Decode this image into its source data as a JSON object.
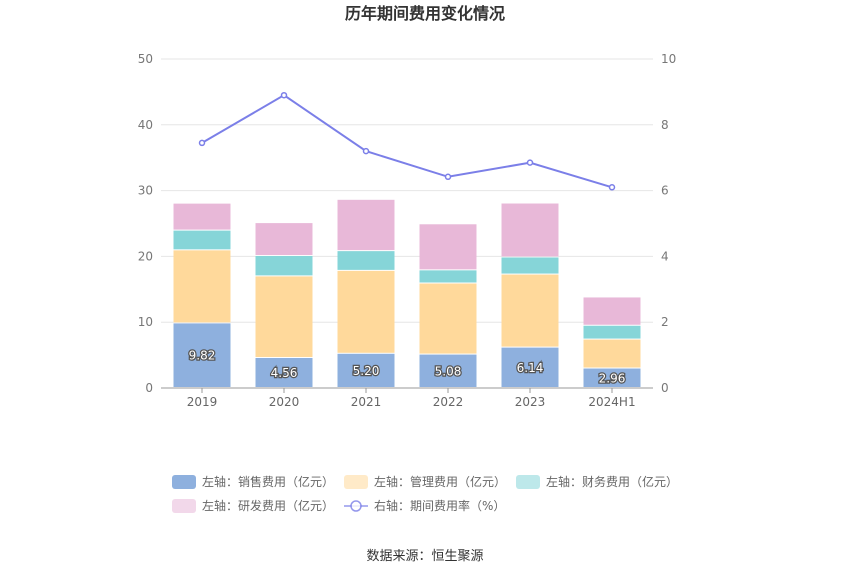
{
  "chart_data": {
    "type": "bar",
    "title": "历年期间费用变化情况",
    "categories": [
      "2019",
      "2020",
      "2021",
      "2022",
      "2023",
      "2024H1"
    ],
    "left_axis": {
      "ylim": [
        0,
        50
      ],
      "ticks": [
        0,
        10,
        20,
        30,
        40,
        50
      ]
    },
    "right_axis": {
      "ylim": [
        0,
        10
      ],
      "ticks": [
        0,
        2,
        4,
        6,
        8,
        10
      ]
    },
    "stacked": true,
    "grid": true,
    "legend_placement": "bottom",
    "series": [
      {
        "name": "左轴：销售费用（亿元）",
        "axis": "left",
        "kind": "bar",
        "color": "#8eb0de",
        "values": [
          9.82,
          4.56,
          5.2,
          5.08,
          6.14,
          2.96
        ],
        "labels": [
          "9.82",
          "4.56",
          "5.20",
          "5.08",
          "6.14",
          "2.96"
        ]
      },
      {
        "name": "左轴：管理费用（亿元）",
        "axis": "left",
        "kind": "bar",
        "color": "#ffd99b",
        "values": [
          11.1,
          12.4,
          12.6,
          10.8,
          11.1,
          4.4
        ]
      },
      {
        "name": "左轴：财务费用（亿元）",
        "axis": "left",
        "kind": "bar",
        "color": "#86d5d8",
        "values": [
          3.0,
          3.1,
          3.0,
          2.0,
          2.6,
          2.1
        ]
      },
      {
        "name": "左轴：研发费用（亿元）",
        "axis": "left",
        "kind": "bar",
        "color": "#e8b8d8",
        "values": [
          4.1,
          5.0,
          7.8,
          7.0,
          8.2,
          4.3
        ]
      },
      {
        "name": "右轴：期间费用率（%）",
        "axis": "right",
        "kind": "line",
        "color": "#7b7fe8",
        "values": [
          7.45,
          8.9,
          7.2,
          6.42,
          6.85,
          6.1
        ]
      }
    ]
  },
  "source": "数据来源：恒生聚源"
}
